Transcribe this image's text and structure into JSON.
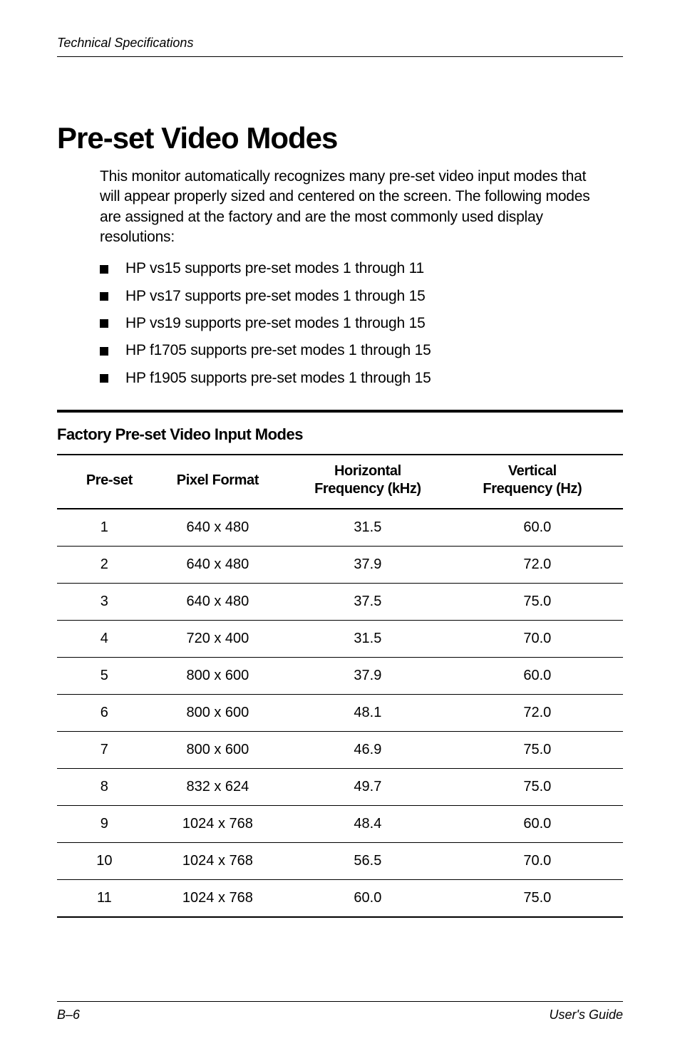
{
  "header": {
    "section": "Technical Specifications"
  },
  "title": "Pre-set Video Modes",
  "intro": "This monitor automatically recognizes many pre-set video input modes that will appear properly sized and centered on the screen. The following modes are assigned at the factory and are the most commonly used display resolutions:",
  "bullets": [
    "HP vs15 supports pre-set modes 1 through 11",
    "HP vs17 supports pre-set modes 1 through 15",
    "HP vs19 supports pre-set modes 1 through 15",
    "HP f1705 supports pre-set modes 1 through 15",
    "HP f1905 supports pre-set modes 1 through 15"
  ],
  "table": {
    "caption": "Factory Pre-set Video Input Modes",
    "columns": [
      "Pre-set",
      "Pixel Format",
      "Horizontal Frequency (kHz)",
      "Vertical Frequency (Hz)"
    ],
    "col_header_lines": [
      [
        "Pre-set"
      ],
      [
        "Pixel Format"
      ],
      [
        "Horizontal",
        "Frequency (kHz)"
      ],
      [
        "Vertical",
        "Frequency (Hz)"
      ]
    ],
    "rows": [
      [
        "1",
        "640 x 480",
        "31.5",
        "60.0"
      ],
      [
        "2",
        "640 x 480",
        "37.9",
        "72.0"
      ],
      [
        "3",
        "640 x 480",
        "37.5",
        "75.0"
      ],
      [
        "4",
        "720 x 400",
        "31.5",
        "70.0"
      ],
      [
        "5",
        "800 x 600",
        "37.9",
        "60.0"
      ],
      [
        "6",
        "800 x 600",
        "48.1",
        "72.0"
      ],
      [
        "7",
        "800 x 600",
        "46.9",
        "75.0"
      ],
      [
        "8",
        "832 x 624",
        "49.7",
        "75.0"
      ],
      [
        "9",
        "1024 x 768",
        "48.4",
        "60.0"
      ],
      [
        "10",
        "1024 x 768",
        "56.5",
        "70.0"
      ],
      [
        "11",
        "1024 x 768",
        "60.0",
        "75.0"
      ]
    ]
  },
  "footer": {
    "left": "B–6",
    "right": "User's Guide"
  },
  "style": {
    "background_color": "#ffffff",
    "text_color": "#000000",
    "rule_color": "#000000",
    "body_fontsize": 21,
    "h1_fontsize": 42,
    "table_fontsize": 20
  }
}
